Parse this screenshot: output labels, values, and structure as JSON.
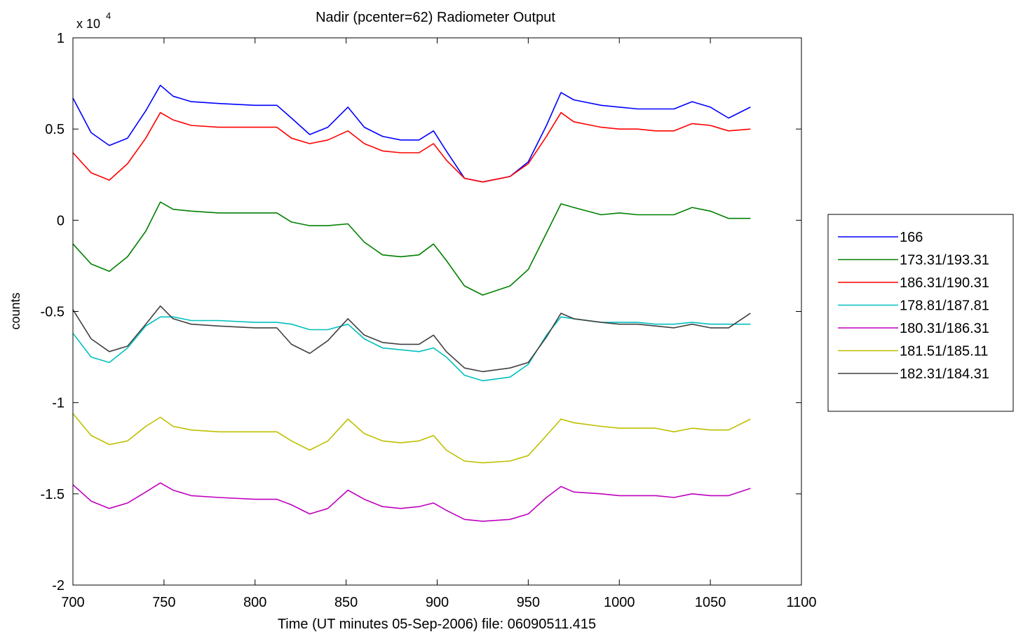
{
  "chart_data": {
    "type": "line",
    "title": "Nadir (pcenter=62) Radiometer Output",
    "xlabel": "Time (UT minutes 05-Sep-2006) file: 06090511.415",
    "ylabel": "counts",
    "y_exponent_label": "x 10",
    "y_exponent_power": "4",
    "xlim": [
      700,
      1100
    ],
    "ylim": [
      -2,
      1
    ],
    "y_scale_factor": 10000,
    "xticks": [
      700,
      750,
      800,
      850,
      900,
      950,
      1000,
      1050,
      1100
    ],
    "xtick_labels": [
      "700",
      "750",
      "800",
      "850",
      "900",
      "950",
      "1000",
      "1050",
      "1100"
    ],
    "yticks": [
      -2,
      -1.5,
      -1,
      -0.5,
      0,
      0.5,
      1
    ],
    "ytick_labels": [
      "-2",
      "-1.5",
      "-1",
      "-0.5",
      "0",
      "0.5",
      "1"
    ],
    "grid": false,
    "legend_position": "right-outside",
    "x": [
      700,
      710,
      720,
      730,
      740,
      748,
      755,
      765,
      780,
      800,
      812,
      820,
      830,
      840,
      851,
      860,
      870,
      880,
      890,
      898,
      905,
      915,
      925,
      940,
      950,
      960,
      968,
      975,
      990,
      1000,
      1010,
      1020,
      1030,
      1040,
      1050,
      1060,
      1072
    ],
    "series": [
      {
        "name": "166",
        "color": "#0000ff",
        "values": [
          0.67,
          0.48,
          0.41,
          0.45,
          0.6,
          0.74,
          0.68,
          0.65,
          0.64,
          0.63,
          0.63,
          0.56,
          0.47,
          0.51,
          0.62,
          0.51,
          0.46,
          0.44,
          0.44,
          0.49,
          0.38,
          0.23,
          0.21,
          0.24,
          0.32,
          0.52,
          0.7,
          0.66,
          0.63,
          0.62,
          0.61,
          0.61,
          0.61,
          0.65,
          0.62,
          0.56,
          0.62
        ]
      },
      {
        "name": "173.31/193.31",
        "color": "#008000",
        "values": [
          -0.13,
          -0.24,
          -0.28,
          -0.2,
          -0.06,
          0.1,
          0.06,
          0.05,
          0.04,
          0.04,
          0.04,
          -0.01,
          -0.03,
          -0.03,
          -0.02,
          -0.12,
          -0.19,
          -0.2,
          -0.19,
          -0.13,
          -0.22,
          -0.36,
          -0.41,
          -0.36,
          -0.27,
          -0.07,
          0.09,
          0.07,
          0.03,
          0.04,
          0.03,
          0.03,
          0.03,
          0.07,
          0.05,
          0.01,
          0.01
        ]
      },
      {
        "name": "186.31/190.31",
        "color": "#ff0000",
        "values": [
          0.37,
          0.26,
          0.22,
          0.31,
          0.45,
          0.59,
          0.55,
          0.52,
          0.51,
          0.51,
          0.51,
          0.45,
          0.42,
          0.44,
          0.49,
          0.42,
          0.38,
          0.37,
          0.37,
          0.42,
          0.33,
          0.23,
          0.21,
          0.24,
          0.31,
          0.46,
          0.59,
          0.54,
          0.51,
          0.5,
          0.5,
          0.49,
          0.49,
          0.53,
          0.52,
          0.49,
          0.5
        ]
      },
      {
        "name": "178.81/187.81",
        "color": "#00bfbf",
        "values": [
          -0.62,
          -0.75,
          -0.78,
          -0.7,
          -0.58,
          -0.53,
          -0.53,
          -0.55,
          -0.55,
          -0.56,
          -0.56,
          -0.57,
          -0.6,
          -0.6,
          -0.57,
          -0.65,
          -0.7,
          -0.71,
          -0.72,
          -0.7,
          -0.75,
          -0.85,
          -0.88,
          -0.86,
          -0.79,
          -0.63,
          -0.53,
          -0.54,
          -0.56,
          -0.56,
          -0.56,
          -0.57,
          -0.57,
          -0.56,
          -0.57,
          -0.57,
          -0.57
        ]
      },
      {
        "name": "180.31/186.31",
        "color": "#bf00bf",
        "values": [
          -1.45,
          -1.54,
          -1.58,
          -1.55,
          -1.49,
          -1.44,
          -1.48,
          -1.51,
          -1.52,
          -1.53,
          -1.53,
          -1.56,
          -1.61,
          -1.58,
          -1.48,
          -1.53,
          -1.57,
          -1.58,
          -1.57,
          -1.55,
          -1.59,
          -1.64,
          -1.65,
          -1.64,
          -1.61,
          -1.52,
          -1.46,
          -1.49,
          -1.5,
          -1.51,
          -1.51,
          -1.51,
          -1.52,
          -1.5,
          -1.51,
          -1.51,
          -1.47
        ]
      },
      {
        "name": "181.51/185.11",
        "color": "#bfbf00",
        "values": [
          -1.06,
          -1.18,
          -1.23,
          -1.21,
          -1.13,
          -1.08,
          -1.13,
          -1.15,
          -1.16,
          -1.16,
          -1.16,
          -1.21,
          -1.26,
          -1.21,
          -1.09,
          -1.17,
          -1.21,
          -1.22,
          -1.21,
          -1.18,
          -1.26,
          -1.32,
          -1.33,
          -1.32,
          -1.29,
          -1.18,
          -1.09,
          -1.11,
          -1.13,
          -1.14,
          -1.14,
          -1.14,
          -1.16,
          -1.14,
          -1.15,
          -1.15,
          -1.09
        ]
      },
      {
        "name": "182.31/184.31",
        "color": "#404040",
        "values": [
          -0.49,
          -0.65,
          -0.72,
          -0.69,
          -0.57,
          -0.47,
          -0.54,
          -0.57,
          -0.58,
          -0.59,
          -0.59,
          -0.68,
          -0.73,
          -0.66,
          -0.54,
          -0.63,
          -0.67,
          -0.68,
          -0.68,
          -0.63,
          -0.72,
          -0.81,
          -0.83,
          -0.81,
          -0.78,
          -0.64,
          -0.51,
          -0.54,
          -0.56,
          -0.57,
          -0.57,
          -0.58,
          -0.59,
          -0.57,
          -0.59,
          -0.59,
          -0.51
        ]
      }
    ]
  }
}
